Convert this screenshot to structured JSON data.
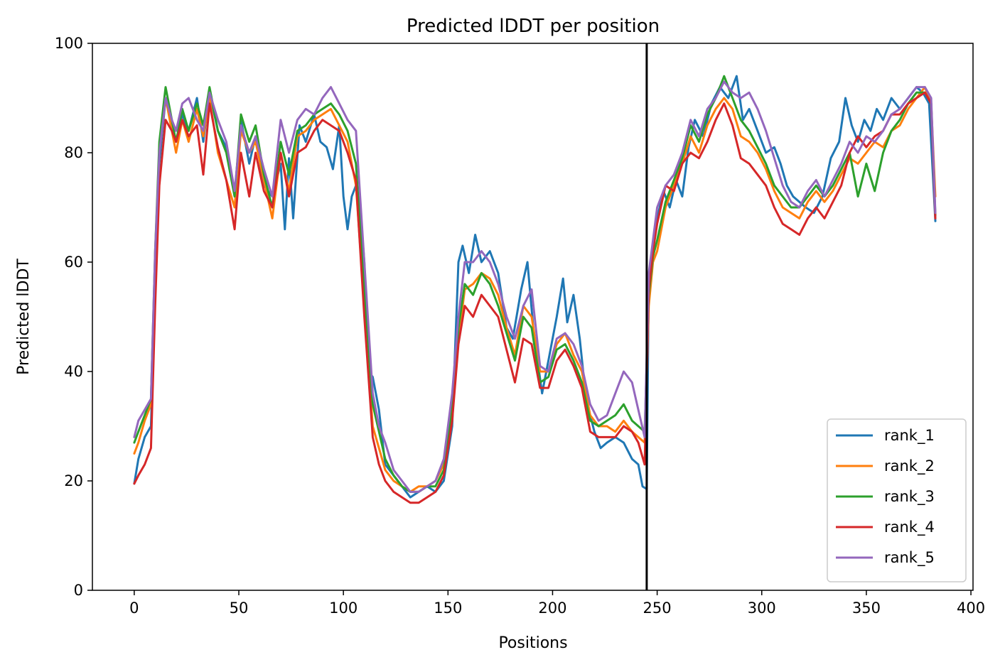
{
  "chart_data": {
    "type": "line",
    "title": "Predicted lDDT per position",
    "xlabel": "Positions",
    "ylabel": "Predicted lDDT",
    "xlim": [
      -20,
      401
    ],
    "ylim": [
      0,
      100
    ],
    "xticks": [
      0,
      50,
      100,
      150,
      200,
      250,
      300,
      350,
      400
    ],
    "yticks": [
      0,
      20,
      40,
      60,
      80,
      100
    ],
    "grid": false,
    "legend_position": "lower right",
    "vline": {
      "x": 245,
      "color": "#000000"
    },
    "series": [
      {
        "name": "rank_1",
        "color": "#1f77b4",
        "x": [
          0,
          2,
          5,
          8,
          10,
          12,
          15,
          18,
          20,
          23,
          26,
          30,
          33,
          36,
          40,
          44,
          48,
          51,
          55,
          58,
          62,
          66,
          70,
          72,
          74,
          76,
          79,
          82,
          86,
          89,
          92,
          95,
          98,
          100,
          102,
          104,
          106,
          108,
          110,
          112,
          114,
          117,
          120,
          124,
          128,
          132,
          136,
          140,
          144,
          148,
          152,
          155,
          157,
          160,
          163,
          166,
          170,
          174,
          178,
          181,
          185,
          188,
          191,
          195,
          198,
          202,
          205,
          207,
          210,
          213,
          216,
          220,
          223,
          226,
          230,
          234,
          238,
          241,
          243,
          245,
          246,
          248,
          250,
          253,
          256,
          259,
          262,
          265,
          268,
          272,
          276,
          280,
          284,
          288,
          291,
          294,
          298,
          302,
          306,
          309,
          312,
          315,
          318,
          321,
          325,
          329,
          333,
          337,
          340,
          343,
          346,
          349,
          352,
          355,
          358,
          362,
          366,
          370,
          374,
          377,
          380,
          383
        ],
        "y": [
          19.5,
          24,
          28,
          30,
          55,
          78,
          90,
          85,
          82,
          87,
          84,
          90,
          82,
          91,
          84,
          81,
          72,
          86,
          78,
          83,
          74,
          72,
          78,
          66,
          79,
          68,
          85,
          82,
          87,
          82,
          81,
          77,
          85,
          72,
          66,
          72,
          74,
          70,
          60,
          40,
          39,
          33,
          23,
          21,
          19,
          17,
          18,
          19,
          18,
          20,
          30,
          60,
          63,
          58,
          65,
          60,
          62,
          58,
          48,
          46,
          55,
          60,
          47,
          36,
          42,
          50,
          57,
          49,
          54,
          46,
          35,
          29,
          26,
          27,
          28,
          27,
          24,
          23,
          19,
          18.5,
          57,
          63,
          68,
          73,
          70,
          75,
          72,
          81,
          86,
          83,
          89,
          92,
          90,
          94,
          86,
          88,
          84,
          80,
          81,
          78,
          74,
          72,
          71,
          70,
          69,
          72,
          79,
          82,
          90,
          85,
          82,
          86,
          84,
          88,
          86,
          90,
          88,
          90,
          92,
          91,
          89,
          67.5
        ]
      },
      {
        "name": "rank_2",
        "color": "#ff7f0e",
        "x": [
          0,
          2,
          5,
          8,
          10,
          12,
          15,
          18,
          20,
          23,
          26,
          30,
          33,
          36,
          40,
          44,
          48,
          51,
          55,
          58,
          62,
          66,
          70,
          74,
          78,
          82,
          86,
          90,
          94,
          98,
          102,
          106,
          110,
          114,
          117,
          120,
          124,
          128,
          132,
          136,
          140,
          144,
          148,
          152,
          155,
          158,
          162,
          166,
          170,
          174,
          178,
          182,
          186,
          190,
          194,
          198,
          202,
          206,
          210,
          214,
          218,
          222,
          226,
          230,
          234,
          238,
          241,
          244,
          246,
          248,
          250,
          254,
          258,
          262,
          266,
          270,
          274,
          278,
          282,
          286,
          290,
          294,
          298,
          302,
          306,
          310,
          314,
          318,
          322,
          326,
          330,
          334,
          338,
          342,
          346,
          350,
          354,
          358,
          362,
          366,
          370,
          374,
          378,
          381,
          383
        ],
        "y": [
          25,
          27,
          31,
          34,
          60,
          80,
          90,
          84,
          80,
          86,
          82,
          88,
          83,
          90,
          80,
          75,
          70,
          84,
          80,
          82,
          75,
          68,
          80,
          73,
          83,
          84,
          86,
          87,
          88,
          85,
          82,
          74,
          52,
          30,
          26,
          22,
          20,
          19,
          18,
          19,
          19,
          20,
          23,
          35,
          46,
          55,
          56,
          58,
          57,
          54,
          48,
          43,
          52,
          50,
          40,
          40,
          45,
          47,
          43,
          40,
          32,
          30,
          30,
          29,
          31,
          29,
          28,
          27,
          52,
          60,
          62,
          70,
          74,
          78,
          83,
          80,
          85,
          88,
          90,
          88,
          83,
          82,
          80,
          77,
          73,
          70,
          69,
          68,
          71,
          73,
          71,
          73,
          76,
          79,
          78,
          80,
          82,
          81,
          84,
          85,
          88,
          90,
          92,
          89,
          72
        ]
      },
      {
        "name": "rank_3",
        "color": "#2ca02c",
        "x": [
          0,
          2,
          5,
          8,
          10,
          12,
          15,
          18,
          20,
          23,
          26,
          30,
          33,
          36,
          40,
          44,
          48,
          51,
          55,
          58,
          62,
          66,
          70,
          74,
          78,
          82,
          86,
          90,
          94,
          98,
          102,
          106,
          110,
          114,
          117,
          120,
          124,
          128,
          132,
          136,
          140,
          144,
          148,
          152,
          155,
          158,
          162,
          166,
          170,
          174,
          178,
          182,
          186,
          190,
          194,
          198,
          202,
          206,
          210,
          214,
          218,
          222,
          226,
          230,
          234,
          238,
          241,
          244,
          246,
          248,
          250,
          254,
          258,
          262,
          266,
          270,
          274,
          278,
          282,
          286,
          290,
          294,
          298,
          302,
          306,
          310,
          314,
          318,
          322,
          326,
          330,
          334,
          338,
          342,
          346,
          350,
          354,
          358,
          362,
          366,
          370,
          374,
          378,
          381,
          383
        ],
        "y": [
          27,
          29,
          32,
          35,
          62,
          82,
          92,
          86,
          82,
          88,
          84,
          89,
          85,
          92,
          84,
          80,
          72,
          87,
          82,
          85,
          76,
          70,
          82,
          76,
          84,
          85,
          87,
          88,
          89,
          87,
          84,
          78,
          55,
          34,
          29,
          24,
          21,
          19,
          18,
          18,
          19,
          19,
          22,
          33,
          48,
          56,
          54,
          58,
          56,
          52,
          47,
          42,
          50,
          48,
          38,
          39,
          44,
          45,
          42,
          38,
          31,
          30,
          31,
          32,
          34,
          31,
          30,
          29,
          54,
          61,
          64,
          71,
          75,
          79,
          85,
          82,
          87,
          90,
          94,
          90,
          86,
          84,
          81,
          78,
          74,
          72,
          70,
          70,
          72,
          74,
          72,
          74,
          77,
          80,
          72,
          78,
          73,
          80,
          84,
          86,
          89,
          91,
          91,
          89,
          68.5
        ]
      },
      {
        "name": "rank_4",
        "color": "#d62728",
        "x": [
          0,
          2,
          5,
          8,
          10,
          12,
          15,
          18,
          20,
          23,
          26,
          30,
          33,
          36,
          40,
          44,
          48,
          51,
          55,
          58,
          62,
          66,
          70,
          74,
          78,
          82,
          86,
          90,
          94,
          98,
          102,
          106,
          110,
          114,
          117,
          120,
          124,
          128,
          132,
          136,
          140,
          144,
          148,
          152,
          155,
          158,
          162,
          166,
          170,
          174,
          178,
          182,
          186,
          190,
          194,
          198,
          202,
          206,
          210,
          214,
          218,
          222,
          226,
          230,
          234,
          238,
          241,
          244,
          246,
          248,
          250,
          254,
          258,
          262,
          266,
          270,
          274,
          278,
          282,
          286,
          290,
          294,
          298,
          302,
          306,
          310,
          314,
          318,
          322,
          326,
          330,
          334,
          338,
          342,
          346,
          350,
          354,
          358,
          362,
          366,
          370,
          374,
          378,
          381,
          383
        ],
        "y": [
          19.5,
          21,
          23,
          26,
          52,
          74,
          86,
          84,
          82,
          86,
          83,
          85,
          76,
          89,
          81,
          75,
          66,
          80,
          72,
          80,
          73,
          70,
          80,
          72,
          80,
          81,
          84,
          86,
          85,
          84,
          80,
          75,
          50,
          28,
          23,
          20,
          18,
          17,
          16,
          16,
          17,
          18,
          21,
          31,
          45,
          52,
          50,
          54,
          52,
          50,
          44,
          38,
          46,
          45,
          37,
          37,
          42,
          44,
          41,
          37,
          29,
          28,
          28,
          28,
          30,
          29,
          27,
          23,
          55,
          62,
          67,
          74,
          73,
          78,
          80,
          79,
          82,
          86,
          89,
          85,
          79,
          78,
          76,
          74,
          70,
          67,
          66,
          65,
          68,
          70,
          68,
          71,
          74,
          80,
          83,
          81,
          83,
          84,
          87,
          87,
          89,
          90,
          91,
          89,
          68
        ]
      },
      {
        "name": "rank_5",
        "color": "#9467bd",
        "x": [
          0,
          2,
          5,
          8,
          10,
          12,
          15,
          18,
          20,
          23,
          26,
          30,
          33,
          36,
          40,
          44,
          48,
          51,
          55,
          58,
          62,
          66,
          70,
          74,
          78,
          82,
          86,
          90,
          94,
          98,
          102,
          106,
          110,
          114,
          117,
          120,
          124,
          128,
          132,
          136,
          140,
          144,
          148,
          152,
          155,
          158,
          162,
          166,
          170,
          174,
          178,
          182,
          186,
          190,
          194,
          198,
          202,
          206,
          210,
          214,
          218,
          222,
          226,
          230,
          234,
          238,
          241,
          244,
          246,
          248,
          250,
          254,
          258,
          262,
          266,
          270,
          274,
          278,
          282,
          286,
          290,
          294,
          298,
          302,
          306,
          310,
          314,
          318,
          322,
          326,
          330,
          334,
          338,
          342,
          346,
          350,
          354,
          358,
          362,
          366,
          370,
          374,
          378,
          381,
          383
        ],
        "y": [
          28,
          31,
          33,
          35,
          62,
          80,
          90,
          86,
          84,
          89,
          90,
          86,
          84,
          91,
          86,
          82,
          73,
          85,
          80,
          83,
          77,
          72,
          86,
          80,
          86,
          88,
          87,
          90,
          92,
          89,
          86,
          84,
          60,
          36,
          30,
          27,
          22,
          20,
          18,
          18,
          19,
          20,
          24,
          36,
          50,
          60,
          60,
          62,
          60,
          56,
          50,
          46,
          52,
          55,
          41,
          40,
          46,
          47,
          45,
          41,
          34,
          31,
          32,
          36,
          40,
          38,
          33,
          28,
          58,
          64,
          70,
          74,
          76,
          80,
          86,
          83,
          88,
          90,
          93,
          91,
          90,
          91,
          88,
          84,
          79,
          74,
          71,
          70,
          73,
          75,
          72,
          75,
          78,
          82,
          80,
          83,
          82,
          84,
          87,
          88,
          90,
          92,
          92,
          90,
          69
        ]
      }
    ]
  }
}
